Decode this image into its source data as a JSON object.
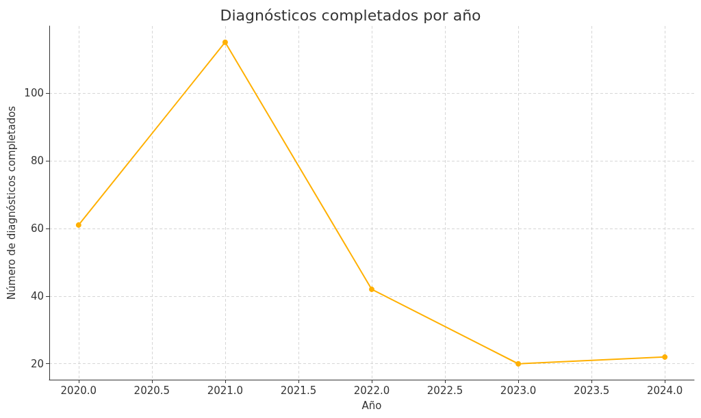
{
  "chart_data": {
    "type": "line",
    "title": "Diagnósticos completados por año",
    "xlabel": "Año",
    "ylabel": "Número de diagnósticos completados",
    "x": [
      2020,
      2021,
      2022,
      2023,
      2024
    ],
    "series": [
      {
        "color": "#ffb000",
        "values": [
          61,
          115,
          42,
          20,
          22
        ]
      }
    ],
    "xlim": [
      2019.8,
      2024.2
    ],
    "xticks": [
      {
        "value": 2020,
        "label": "2020.0"
      },
      {
        "value": 2020.5,
        "label": "2020.5"
      },
      {
        "value": 2021,
        "label": "2021.0"
      },
      {
        "value": 2021.5,
        "label": "2021.5"
      },
      {
        "value": 2022,
        "label": "2022.0"
      },
      {
        "value": 2022.5,
        "label": "2022.5"
      },
      {
        "value": 2023,
        "label": "2023.0"
      },
      {
        "value": 2023.5,
        "label": "2023.5"
      },
      {
        "value": 2024,
        "label": "2024.0"
      }
    ],
    "ylim": [
      15.3,
      119.8
    ],
    "yticks": [
      20,
      40,
      60,
      80,
      100
    ],
    "grid": true,
    "marker": "circle",
    "line_style": "solid"
  }
}
